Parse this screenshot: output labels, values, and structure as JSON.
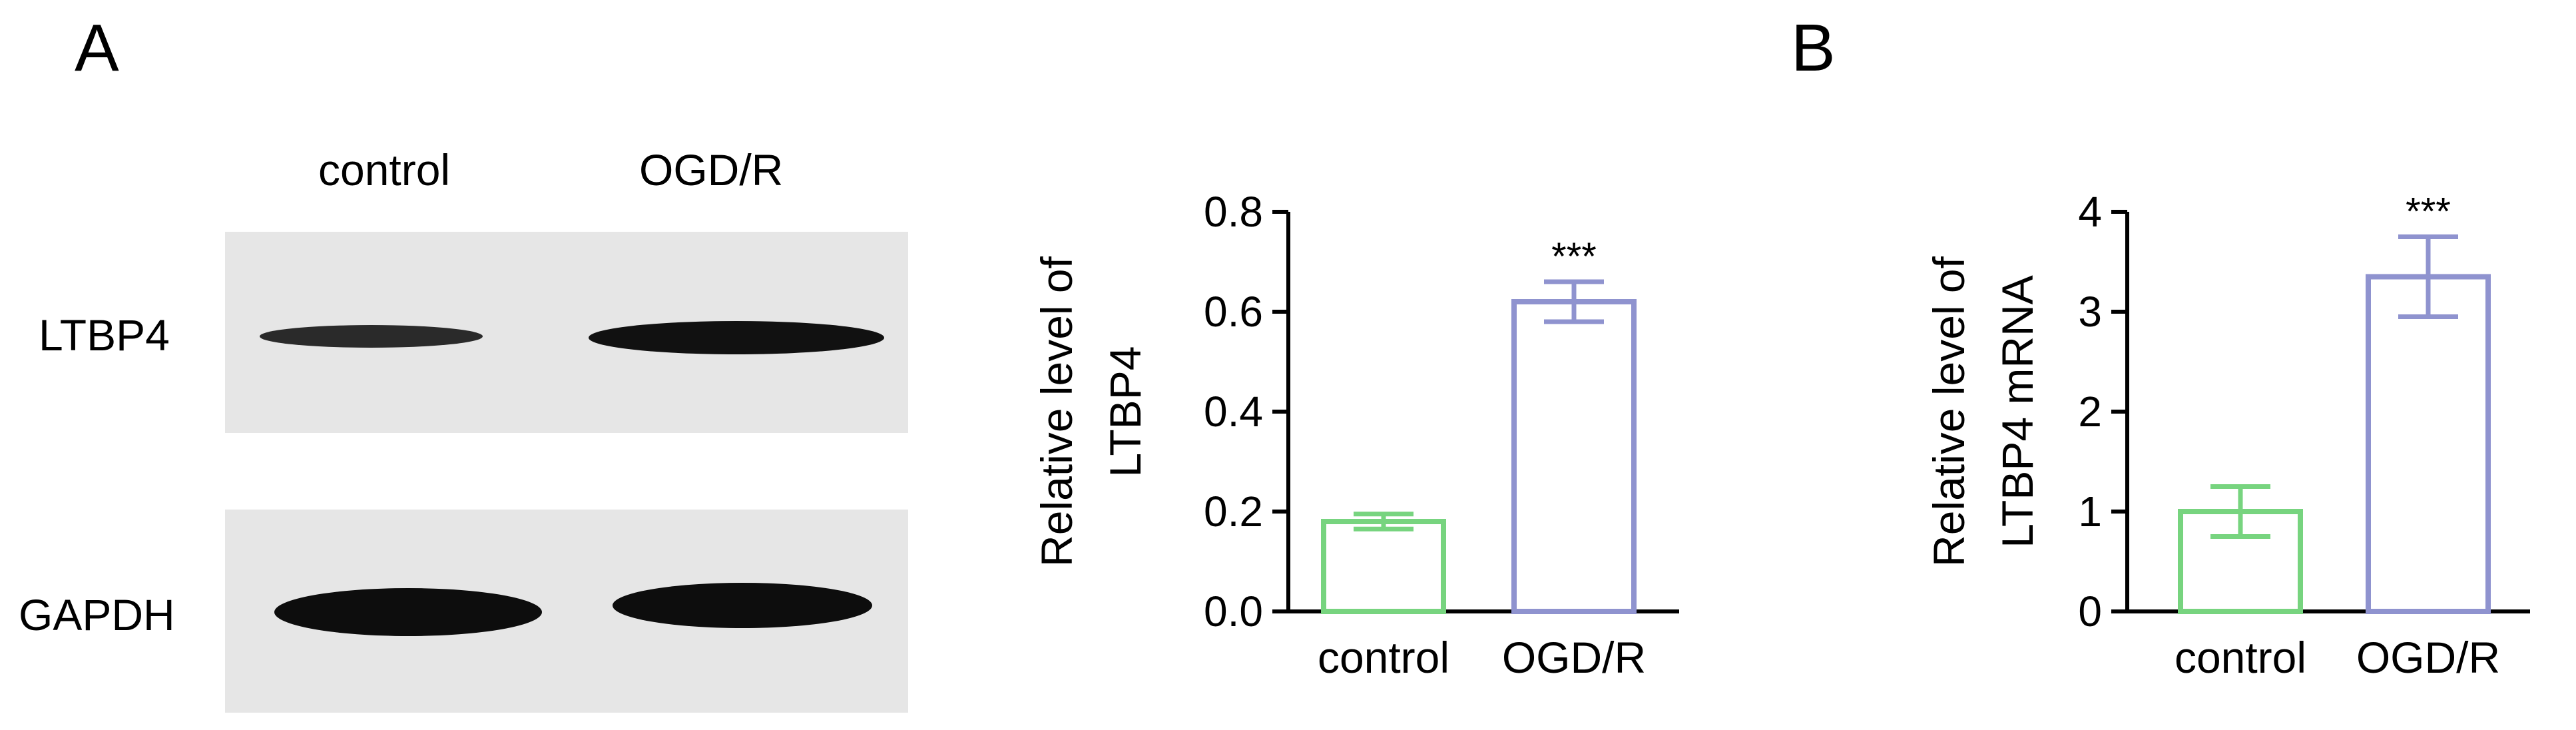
{
  "panels": {
    "a": "A",
    "b": "B"
  },
  "blot": {
    "lanes": [
      "control",
      "OGD/R"
    ],
    "rows": [
      {
        "label": "LTBP4",
        "relative_intensity": [
          0.3,
          0.62
        ]
      },
      {
        "label": "GAPDH",
        "relative_intensity": [
          0.95,
          0.95
        ]
      }
    ]
  },
  "chart_data": [
    {
      "type": "bar",
      "categories": [
        "control",
        "OGD/R"
      ],
      "values": [
        0.18,
        0.62
      ],
      "errors": [
        0.015,
        0.04
      ],
      "significance": [
        "",
        "***"
      ],
      "colors": [
        "#77d47f",
        "#8f93cf"
      ],
      "ylabel_lines": [
        "Relative level of",
        "LTBP4"
      ],
      "ylim": [
        0,
        0.8
      ],
      "yticks": [
        "0.0",
        "0.2",
        "0.4",
        "0.6",
        "0.8"
      ],
      "grid": false
    },
    {
      "type": "bar",
      "categories": [
        "control",
        "OGD/R"
      ],
      "values": [
        1.0,
        3.35
      ],
      "errors": [
        0.25,
        0.4
      ],
      "significance": [
        "",
        "***"
      ],
      "colors": [
        "#77d47f",
        "#8f93cf"
      ],
      "ylabel_lines": [
        "Relative level of",
        "LTBP4 mRNA"
      ],
      "ylim": [
        0,
        4
      ],
      "yticks": [
        "0",
        "1",
        "2",
        "3",
        "4"
      ],
      "grid": false
    }
  ]
}
